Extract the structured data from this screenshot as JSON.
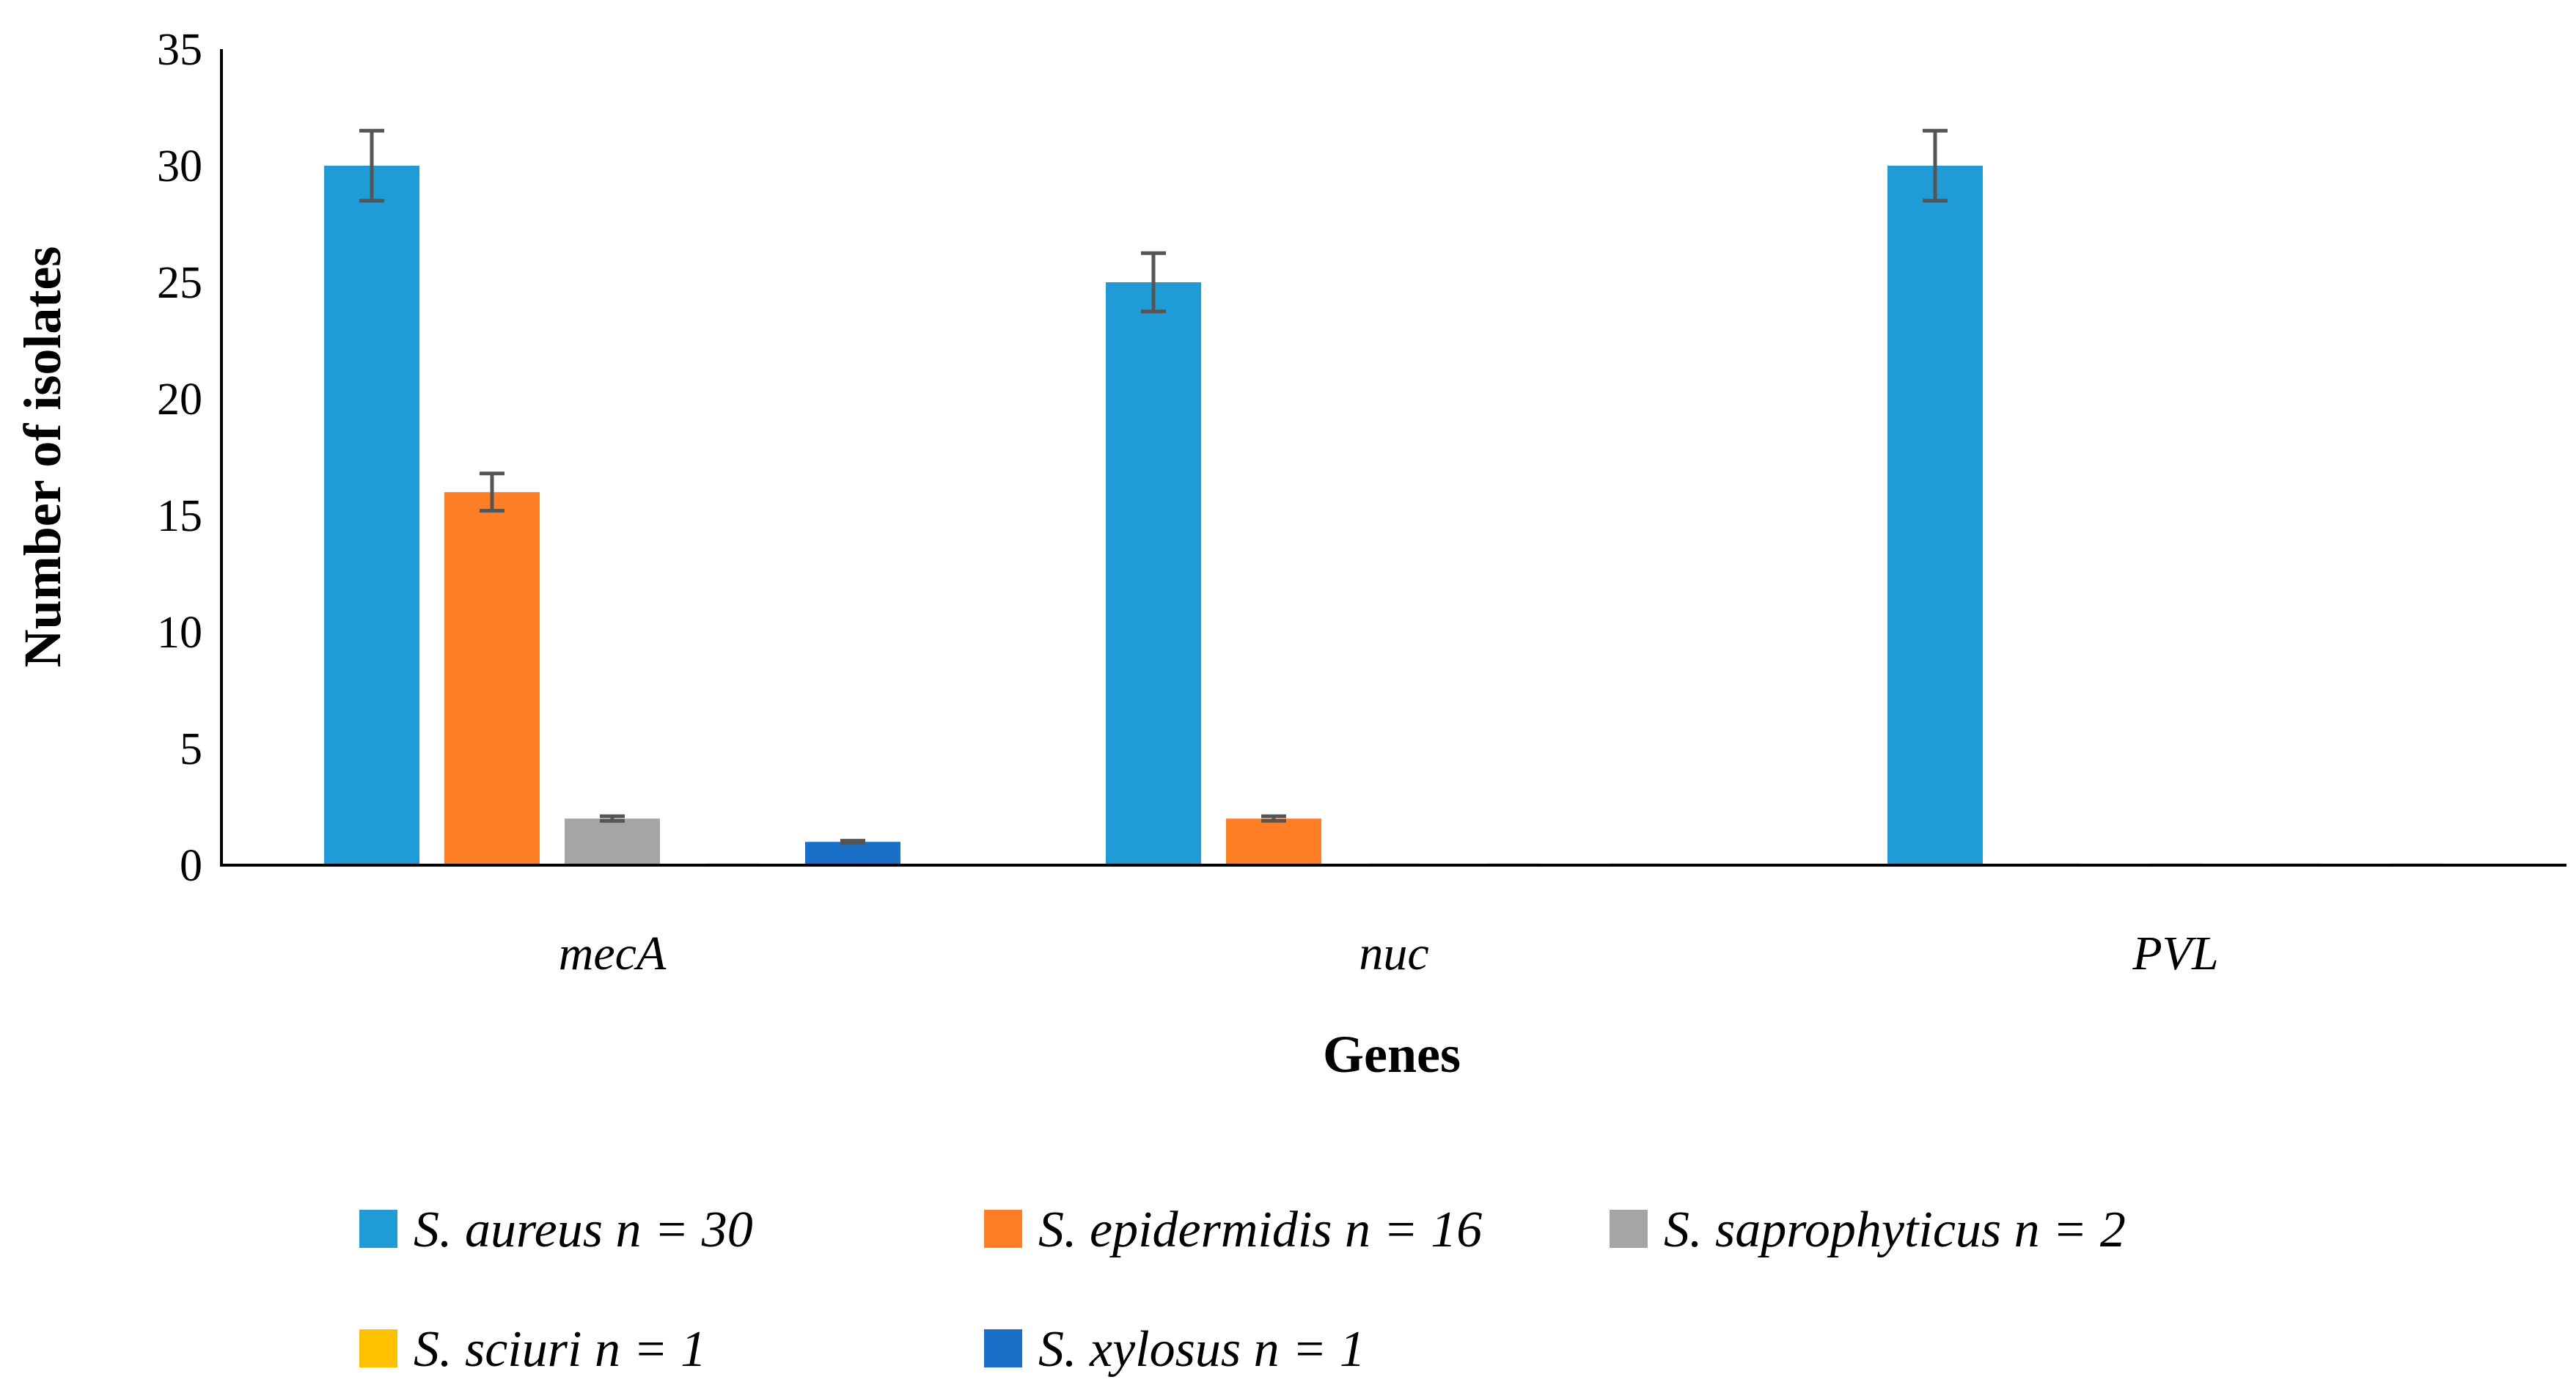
{
  "chart_data": {
    "type": "bar",
    "title": "",
    "xlabel": "Genes",
    "ylabel": "Number of isolates",
    "ylim": [
      0,
      35
    ],
    "yticks": [
      "0",
      "5",
      "10",
      "15",
      "20",
      "25",
      "30",
      "35"
    ],
    "categories": [
      "mecA",
      "nuc",
      "PVL"
    ],
    "series": [
      {
        "name": "S. aureus n = 30",
        "color": "#1f9bd7",
        "values": [
          30,
          25,
          30
        ],
        "errors": [
          1.5,
          1.25,
          1.5
        ]
      },
      {
        "name": "S. epidermidis n = 16",
        "color": "#ff7f27",
        "values": [
          16,
          2,
          0
        ],
        "errors": [
          0.8,
          0.1,
          0
        ]
      },
      {
        "name": "S. saprophyticus n = 2",
        "color": "#a5a5a5",
        "values": [
          2,
          0,
          0
        ],
        "errors": [
          0.1,
          0,
          0
        ]
      },
      {
        "name": "S. sciuri n = 1",
        "color": "#ffc000",
        "values": [
          0,
          0,
          0
        ],
        "errors": [
          0,
          0,
          0
        ]
      },
      {
        "name": "S. xylosus n = 1",
        "color": "#1a6fc9",
        "values": [
          1,
          0,
          0
        ],
        "errors": [
          0.05,
          0,
          0
        ]
      }
    ],
    "legend_position": "bottom",
    "grid": false
  }
}
